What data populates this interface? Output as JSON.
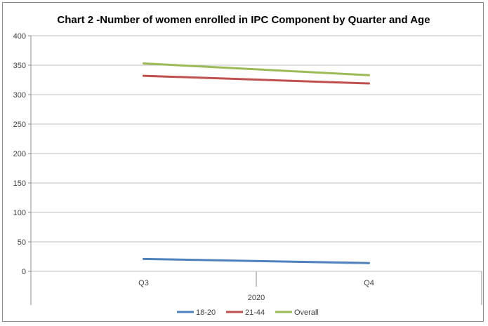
{
  "chart_data": {
    "type": "line",
    "title": "Chart 2 -Number of women enrolled in IPC Component by Quarter and Age",
    "xlabel": "",
    "ylabel": "",
    "categories": [
      "Q3",
      "Q4"
    ],
    "category_group": "2020",
    "ylim": [
      0,
      400
    ],
    "yticks": [
      "0",
      "50",
      "100",
      "150",
      "200",
      "250",
      "300",
      "350",
      "400"
    ],
    "grid": true,
    "legend_position": "bottom",
    "series": [
      {
        "name": "18-20",
        "values": [
          21,
          14
        ],
        "color": "#4f81bd"
      },
      {
        "name": "21-44",
        "values": [
          332,
          319
        ],
        "color": "#c0504d"
      },
      {
        "name": "Overall",
        "values": [
          353,
          333
        ],
        "color": "#9bbb59"
      }
    ]
  }
}
